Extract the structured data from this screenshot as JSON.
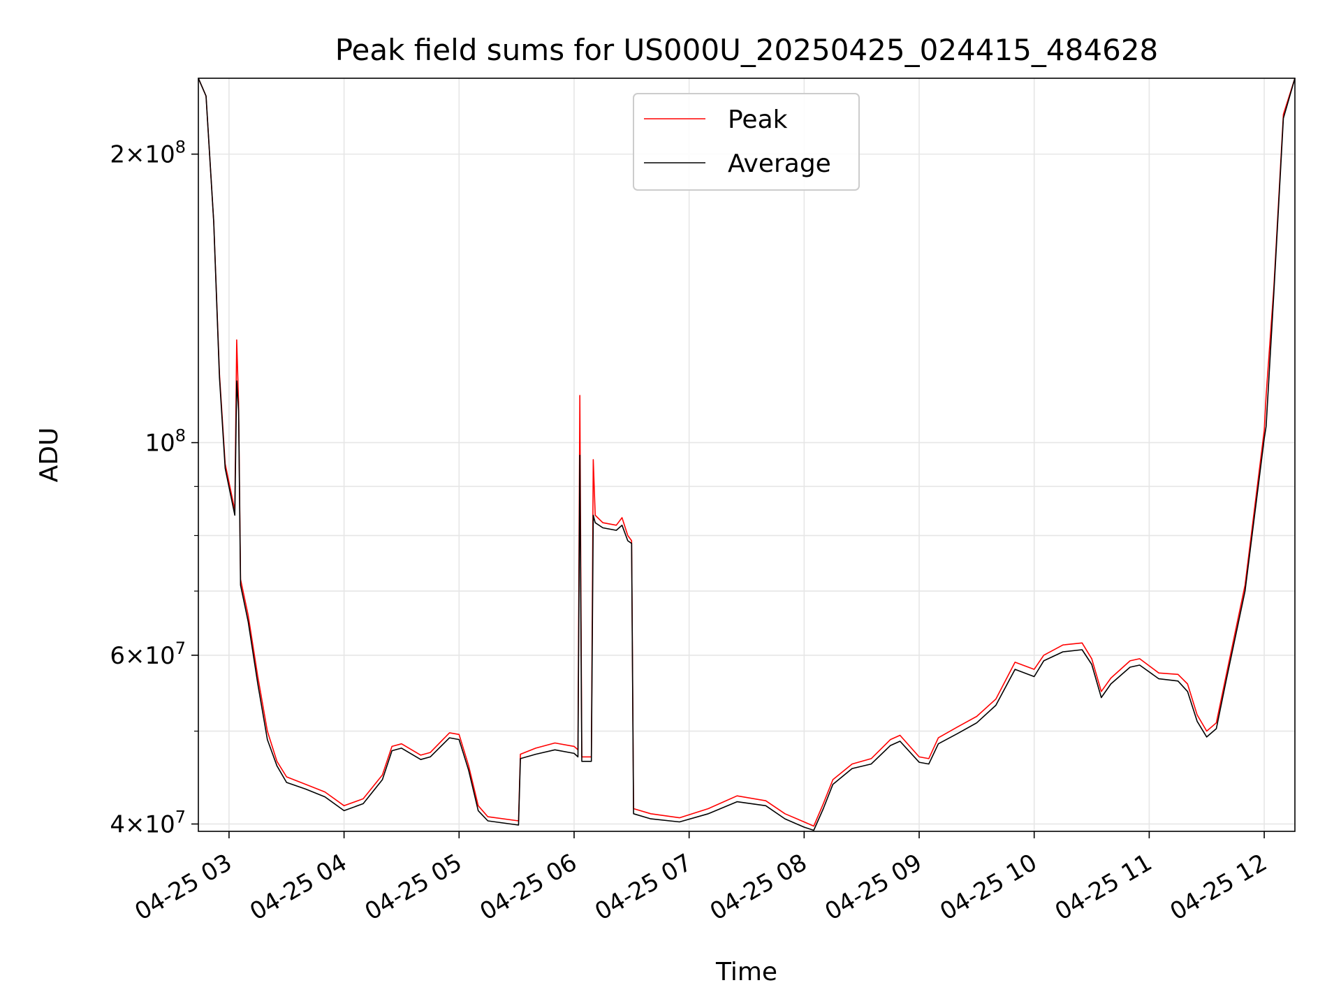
{
  "chart_data": {
    "type": "line",
    "title": "Peak field sums for US000U_20250425_024415_484628",
    "xlabel": "Time",
    "ylabel": "ADU",
    "y_scale": "log",
    "ylim": [
      39300000,
      240000000
    ],
    "xlim": [
      "2025-04-25 02:44",
      "2025-04-25 12:16"
    ],
    "grid": true,
    "legend_position": "upper center",
    "x_ticks": [
      {
        "t": "2025-04-25 03:00",
        "label": "04-25 03"
      },
      {
        "t": "2025-04-25 04:00",
        "label": "04-25 04"
      },
      {
        "t": "2025-04-25 05:00",
        "label": "04-25 05"
      },
      {
        "t": "2025-04-25 06:00",
        "label": "04-25 06"
      },
      {
        "t": "2025-04-25 07:00",
        "label": "04-25 07"
      },
      {
        "t": "2025-04-25 08:00",
        "label": "04-25 08"
      },
      {
        "t": "2025-04-25 09:00",
        "label": "04-25 09"
      },
      {
        "t": "2025-04-25 10:00",
        "label": "04-25 10"
      },
      {
        "t": "2025-04-25 11:00",
        "label": "04-25 11"
      },
      {
        "t": "2025-04-25 12:00",
        "label": "04-25 12"
      }
    ],
    "y_major_ticks": [
      {
        "value": 40000000,
        "mant": "4",
        "exp": "7"
      },
      {
        "value": 60000000,
        "mant": "6",
        "exp": "7"
      },
      {
        "value": 100000000,
        "mant": "",
        "exp": "8"
      },
      {
        "value": 200000000,
        "mant": "2",
        "exp": "8"
      }
    ],
    "y_minor_ticks": [
      50000000,
      70000000,
      80000000,
      90000000
    ],
    "series": [
      {
        "name": "Peak",
        "color": "#ff0000",
        "points": [
          [
            "2025-04-25 02:44",
            240000000
          ],
          [
            "2025-04-25 02:48",
            230000000
          ],
          [
            "2025-04-25 02:52",
            170000000
          ],
          [
            "2025-04-25 02:55",
            118000000
          ],
          [
            "2025-04-25 02:58",
            95000000
          ],
          [
            "2025-04-25 03:03",
            85000000
          ],
          [
            "2025-04-25 03:04",
            128000000
          ],
          [
            "2025-04-25 03:05",
            110000000
          ],
          [
            "2025-04-25 03:06",
            72000000
          ],
          [
            "2025-04-25 03:10",
            66000000
          ],
          [
            "2025-04-25 03:15",
            57000000
          ],
          [
            "2025-04-25 03:20",
            50000000
          ],
          [
            "2025-04-25 03:25",
            46500000
          ],
          [
            "2025-04-25 03:30",
            44800000
          ],
          [
            "2025-04-25 03:40",
            44000000
          ],
          [
            "2025-04-25 03:50",
            43200000
          ],
          [
            "2025-04-25 04:00",
            41800000
          ],
          [
            "2025-04-25 04:10",
            42500000
          ],
          [
            "2025-04-25 04:20",
            45000000
          ],
          [
            "2025-04-25 04:25",
            48200000
          ],
          [
            "2025-04-25 04:30",
            48500000
          ],
          [
            "2025-04-25 04:40",
            47200000
          ],
          [
            "2025-04-25 04:45",
            47500000
          ],
          [
            "2025-04-25 04:55",
            49800000
          ],
          [
            "2025-04-25 05:00",
            49600000
          ],
          [
            "2025-04-25 05:05",
            46000000
          ],
          [
            "2025-04-25 05:10",
            41800000
          ],
          [
            "2025-04-25 05:15",
            40700000
          ],
          [
            "2025-04-25 05:31",
            40300000
          ],
          [
            "2025-04-25 05:32",
            47300000
          ],
          [
            "2025-04-25 05:40",
            48000000
          ],
          [
            "2025-04-25 05:50",
            48600000
          ],
          [
            "2025-04-25 06:00",
            48200000
          ],
          [
            "2025-04-25 06:02",
            47800000
          ],
          [
            "2025-04-25 06:03",
            112000000
          ],
          [
            "2025-04-25 06:04",
            47000000
          ],
          [
            "2025-04-25 06:09",
            47000000
          ],
          [
            "2025-04-25 06:10",
            96000000
          ],
          [
            "2025-04-25 06:11",
            84000000
          ],
          [
            "2025-04-25 06:15",
            82500000
          ],
          [
            "2025-04-25 06:22",
            82000000
          ],
          [
            "2025-04-25 06:25",
            83500000
          ],
          [
            "2025-04-25 06:28",
            80000000
          ],
          [
            "2025-04-25 06:30",
            79000000
          ],
          [
            "2025-04-25 06:31",
            41500000
          ],
          [
            "2025-04-25 06:40",
            41000000
          ],
          [
            "2025-04-25 06:55",
            40600000
          ],
          [
            "2025-04-25 07:10",
            41500000
          ],
          [
            "2025-04-25 07:25",
            42800000
          ],
          [
            "2025-04-25 07:40",
            42300000
          ],
          [
            "2025-04-25 07:50",
            41000000
          ],
          [
            "2025-04-25 08:00",
            40200000
          ],
          [
            "2025-04-25 08:05",
            39800000
          ],
          [
            "2025-04-25 08:10",
            42000000
          ],
          [
            "2025-04-25 08:15",
            44500000
          ],
          [
            "2025-04-25 08:25",
            46200000
          ],
          [
            "2025-04-25 08:35",
            46800000
          ],
          [
            "2025-04-25 08:45",
            49000000
          ],
          [
            "2025-04-25 08:50",
            49500000
          ],
          [
            "2025-04-25 09:00",
            47000000
          ],
          [
            "2025-04-25 09:05",
            46800000
          ],
          [
            "2025-04-25 09:10",
            49200000
          ],
          [
            "2025-04-25 09:20",
            50500000
          ],
          [
            "2025-04-25 09:30",
            51800000
          ],
          [
            "2025-04-25 09:40",
            54000000
          ],
          [
            "2025-04-25 09:50",
            59000000
          ],
          [
            "2025-04-25 10:00",
            58000000
          ],
          [
            "2025-04-25 10:05",
            60000000
          ],
          [
            "2025-04-25 10:15",
            61500000
          ],
          [
            "2025-04-25 10:25",
            61800000
          ],
          [
            "2025-04-25 10:30",
            59500000
          ],
          [
            "2025-04-25 10:35",
            55000000
          ],
          [
            "2025-04-25 10:40",
            56800000
          ],
          [
            "2025-04-25 10:50",
            59200000
          ],
          [
            "2025-04-25 10:55",
            59500000
          ],
          [
            "2025-04-25 11:05",
            57500000
          ],
          [
            "2025-04-25 11:15",
            57300000
          ],
          [
            "2025-04-25 11:20",
            56000000
          ],
          [
            "2025-04-25 11:25",
            52000000
          ],
          [
            "2025-04-25 11:30",
            50000000
          ],
          [
            "2025-04-25 11:35",
            51000000
          ],
          [
            "2025-04-25 11:40",
            57000000
          ],
          [
            "2025-04-25 11:50",
            71000000
          ],
          [
            "2025-04-25 12:00",
            103000000
          ],
          [
            "2025-04-25 12:01",
            112000000
          ],
          [
            "2025-04-25 12:05",
            145000000
          ],
          [
            "2025-04-25 12:10",
            220000000
          ],
          [
            "2025-04-25 12:16",
            240000000
          ]
        ]
      },
      {
        "name": "Average",
        "color": "#000000",
        "points": [
          [
            "2025-04-25 02:44",
            240000000
          ],
          [
            "2025-04-25 02:48",
            230000000
          ],
          [
            "2025-04-25 02:52",
            170000000
          ],
          [
            "2025-04-25 02:55",
            117000000
          ],
          [
            "2025-04-25 02:58",
            94000000
          ],
          [
            "2025-04-25 03:03",
            84000000
          ],
          [
            "2025-04-25 03:04",
            116000000
          ],
          [
            "2025-04-25 03:05",
            108000000
          ],
          [
            "2025-04-25 03:06",
            71000000
          ],
          [
            "2025-04-25 03:10",
            65000000
          ],
          [
            "2025-04-25 03:15",
            56000000
          ],
          [
            "2025-04-25 03:20",
            49000000
          ],
          [
            "2025-04-25 03:25",
            46000000
          ],
          [
            "2025-04-25 03:30",
            44200000
          ],
          [
            "2025-04-25 03:40",
            43500000
          ],
          [
            "2025-04-25 03:50",
            42700000
          ],
          [
            "2025-04-25 04:00",
            41300000
          ],
          [
            "2025-04-25 04:10",
            42000000
          ],
          [
            "2025-04-25 04:20",
            44500000
          ],
          [
            "2025-04-25 04:25",
            47700000
          ],
          [
            "2025-04-25 04:30",
            48000000
          ],
          [
            "2025-04-25 04:40",
            46700000
          ],
          [
            "2025-04-25 04:45",
            47000000
          ],
          [
            "2025-04-25 04:55",
            49200000
          ],
          [
            "2025-04-25 05:00",
            49000000
          ],
          [
            "2025-04-25 05:05",
            45500000
          ],
          [
            "2025-04-25 05:10",
            41300000
          ],
          [
            "2025-04-25 05:15",
            40300000
          ],
          [
            "2025-04-25 05:31",
            39900000
          ],
          [
            "2025-04-25 05:32",
            46800000
          ],
          [
            "2025-04-25 05:40",
            47300000
          ],
          [
            "2025-04-25 05:50",
            47800000
          ],
          [
            "2025-04-25 06:00",
            47400000
          ],
          [
            "2025-04-25 06:02",
            47000000
          ],
          [
            "2025-04-25 06:03",
            97000000
          ],
          [
            "2025-04-25 06:04",
            46500000
          ],
          [
            "2025-04-25 06:09",
            46500000
          ],
          [
            "2025-04-25 06:10",
            84000000
          ],
          [
            "2025-04-25 06:11",
            82500000
          ],
          [
            "2025-04-25 06:15",
            81500000
          ],
          [
            "2025-04-25 06:22",
            81000000
          ],
          [
            "2025-04-25 06:25",
            82000000
          ],
          [
            "2025-04-25 06:28",
            79000000
          ],
          [
            "2025-04-25 06:30",
            78500000
          ],
          [
            "2025-04-25 06:31",
            41000000
          ],
          [
            "2025-04-25 06:40",
            40500000
          ],
          [
            "2025-04-25 06:55",
            40200000
          ],
          [
            "2025-04-25 07:10",
            41000000
          ],
          [
            "2025-04-25 07:25",
            42200000
          ],
          [
            "2025-04-25 07:40",
            41800000
          ],
          [
            "2025-04-25 07:50",
            40500000
          ],
          [
            "2025-04-25 08:00",
            39700000
          ],
          [
            "2025-04-25 08:05",
            39400000
          ],
          [
            "2025-04-25 08:10",
            41500000
          ],
          [
            "2025-04-25 08:15",
            44000000
          ],
          [
            "2025-04-25 08:25",
            45700000
          ],
          [
            "2025-04-25 08:35",
            46200000
          ],
          [
            "2025-04-25 08:45",
            48300000
          ],
          [
            "2025-04-25 08:50",
            48800000
          ],
          [
            "2025-04-25 09:00",
            46400000
          ],
          [
            "2025-04-25 09:05",
            46200000
          ],
          [
            "2025-04-25 09:10",
            48500000
          ],
          [
            "2025-04-25 09:20",
            49700000
          ],
          [
            "2025-04-25 09:30",
            51000000
          ],
          [
            "2025-04-25 09:40",
            53200000
          ],
          [
            "2025-04-25 09:50",
            58000000
          ],
          [
            "2025-04-25 10:00",
            57000000
          ],
          [
            "2025-04-25 10:05",
            59200000
          ],
          [
            "2025-04-25 10:15",
            60500000
          ],
          [
            "2025-04-25 10:25",
            60800000
          ],
          [
            "2025-04-25 10:30",
            58700000
          ],
          [
            "2025-04-25 10:35",
            54200000
          ],
          [
            "2025-04-25 10:40",
            56000000
          ],
          [
            "2025-04-25 10:50",
            58300000
          ],
          [
            "2025-04-25 10:55",
            58600000
          ],
          [
            "2025-04-25 11:05",
            56700000
          ],
          [
            "2025-04-25 11:15",
            56400000
          ],
          [
            "2025-04-25 11:20",
            55000000
          ],
          [
            "2025-04-25 11:25",
            51200000
          ],
          [
            "2025-04-25 11:30",
            49300000
          ],
          [
            "2025-04-25 11:35",
            50300000
          ],
          [
            "2025-04-25 11:40",
            56300000
          ],
          [
            "2025-04-25 11:50",
            70000000
          ],
          [
            "2025-04-25 12:00",
            101000000
          ],
          [
            "2025-04-25 12:01",
            104000000
          ],
          [
            "2025-04-25 12:05",
            143000000
          ],
          [
            "2025-04-25 12:10",
            218000000
          ],
          [
            "2025-04-25 12:16",
            240000000
          ]
        ]
      }
    ]
  }
}
